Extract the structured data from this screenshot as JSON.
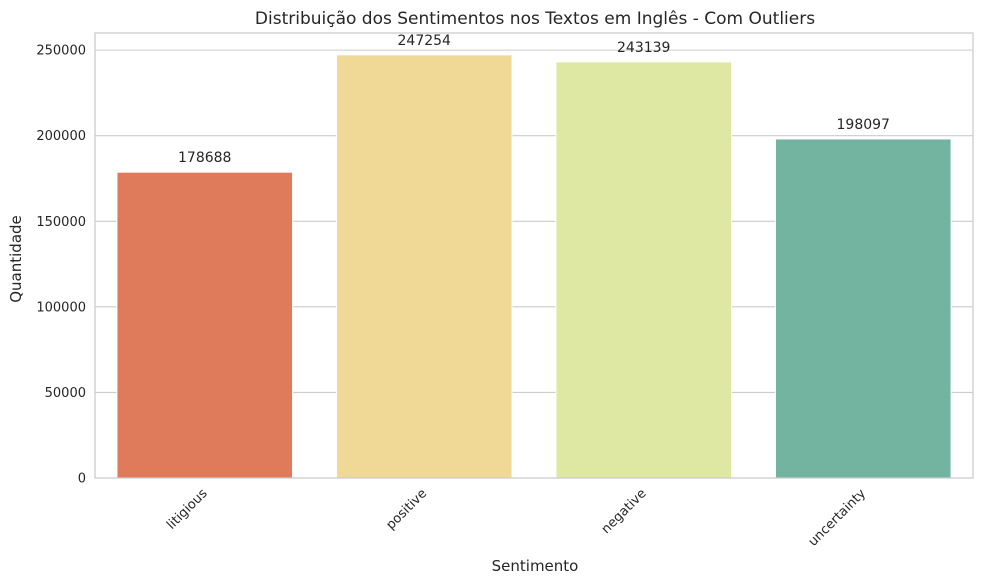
{
  "chart_data": {
    "type": "bar",
    "title": "Distribuição dos Sentimentos nos Textos em Inglês - Com Outliers",
    "xlabel": "Sentimento",
    "ylabel": "Quantidade",
    "categories": [
      "litigious",
      "positive",
      "negative",
      "uncertainty"
    ],
    "values": [
      178688,
      247254,
      243139,
      198097
    ],
    "value_labels": [
      "178688",
      "247254",
      "243139",
      "198097"
    ],
    "colors": [
      "#df7a5a",
      "#f0d896",
      "#dfe8a2",
      "#73b4a0"
    ],
    "ylim": [
      0,
      260000
    ],
    "yticks": [
      0,
      50000,
      100000,
      150000,
      200000,
      250000
    ],
    "ytick_labels": [
      "0",
      "50000",
      "100000",
      "150000",
      "200000",
      "250000"
    ],
    "grid": true,
    "xtick_rotation_deg": 45
  }
}
